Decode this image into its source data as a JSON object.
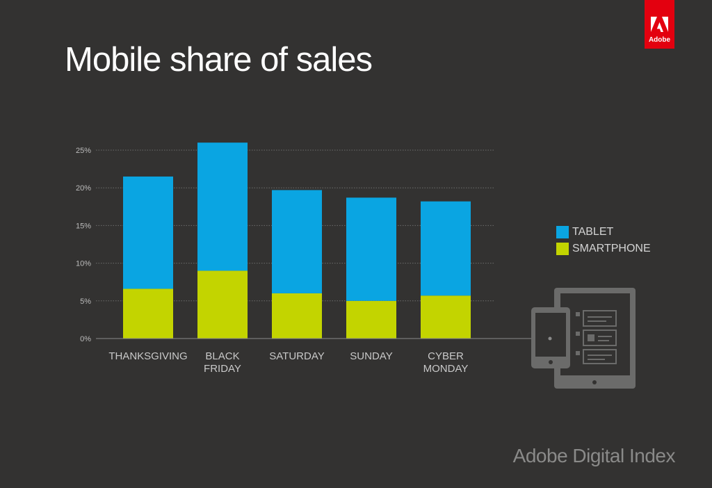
{
  "title": "Mobile share of sales",
  "brand": {
    "logo_text": "Adobe",
    "footer": "Adobe Digital Index"
  },
  "colors": {
    "tablet": "#0aa5e2",
    "smartphone": "#c3d400",
    "background": "#333231",
    "device_icon": "#6b6b6a"
  },
  "chart_data": {
    "type": "bar",
    "stacked": true,
    "categories": [
      "THANKSGIVING",
      "BLACK FRIDAY",
      "SATURDAY",
      "SUNDAY",
      "CYBER MONDAY"
    ],
    "category_lines": [
      [
        "THANKSGIVING"
      ],
      [
        "BLACK",
        "FRIDAY"
      ],
      [
        "SATURDAY"
      ],
      [
        "SUNDAY"
      ],
      [
        "CYBER",
        "MONDAY"
      ]
    ],
    "series": [
      {
        "name": "SMARTPHONE",
        "values": [
          6.6,
          9.0,
          6.0,
          5.0,
          5.7
        ]
      },
      {
        "name": "TABLET",
        "values": [
          14.9,
          17.0,
          13.7,
          13.7,
          12.5
        ]
      }
    ],
    "totals": [
      21.5,
      26.0,
      19.7,
      18.7,
      18.2
    ],
    "ylim": [
      0,
      25
    ],
    "yticks": [
      "0%",
      "5%",
      "10%",
      "15%",
      "20%",
      "25%"
    ],
    "ytick_values": [
      0,
      5,
      10,
      15,
      20,
      25
    ],
    "grid": true,
    "legend_position": "right",
    "legend": [
      "TABLET",
      "SMARTPHONE"
    ]
  }
}
